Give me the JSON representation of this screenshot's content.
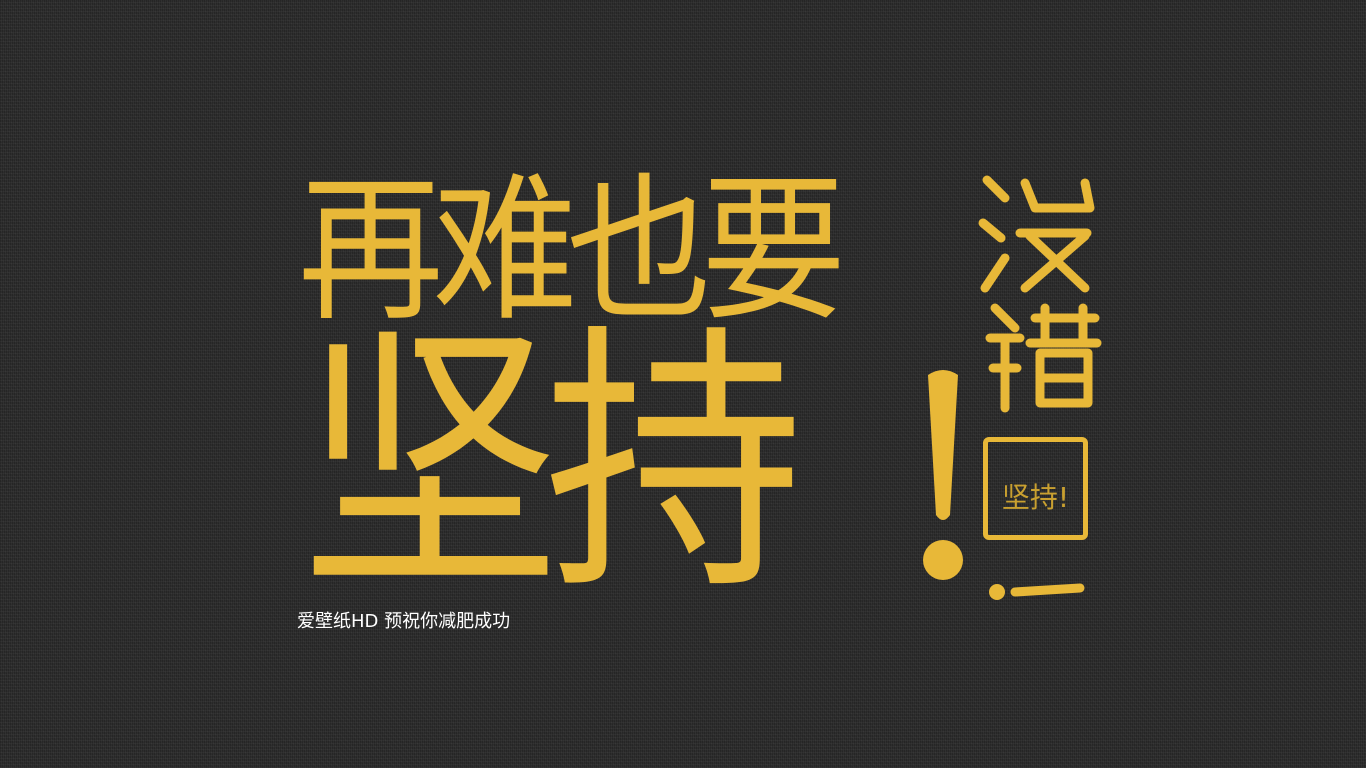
{
  "headline": {
    "line1": "再难也要",
    "vertical_word": "没错",
    "big_word": "坚持",
    "exclamation": "!",
    "badge_text": "坚持!"
  },
  "footer": {
    "text": "爱壁纸HD  预祝你减肥成功"
  },
  "colors": {
    "accent": "#e8b838",
    "background": "#2d2d2d",
    "footer_text": "#ffffff"
  }
}
